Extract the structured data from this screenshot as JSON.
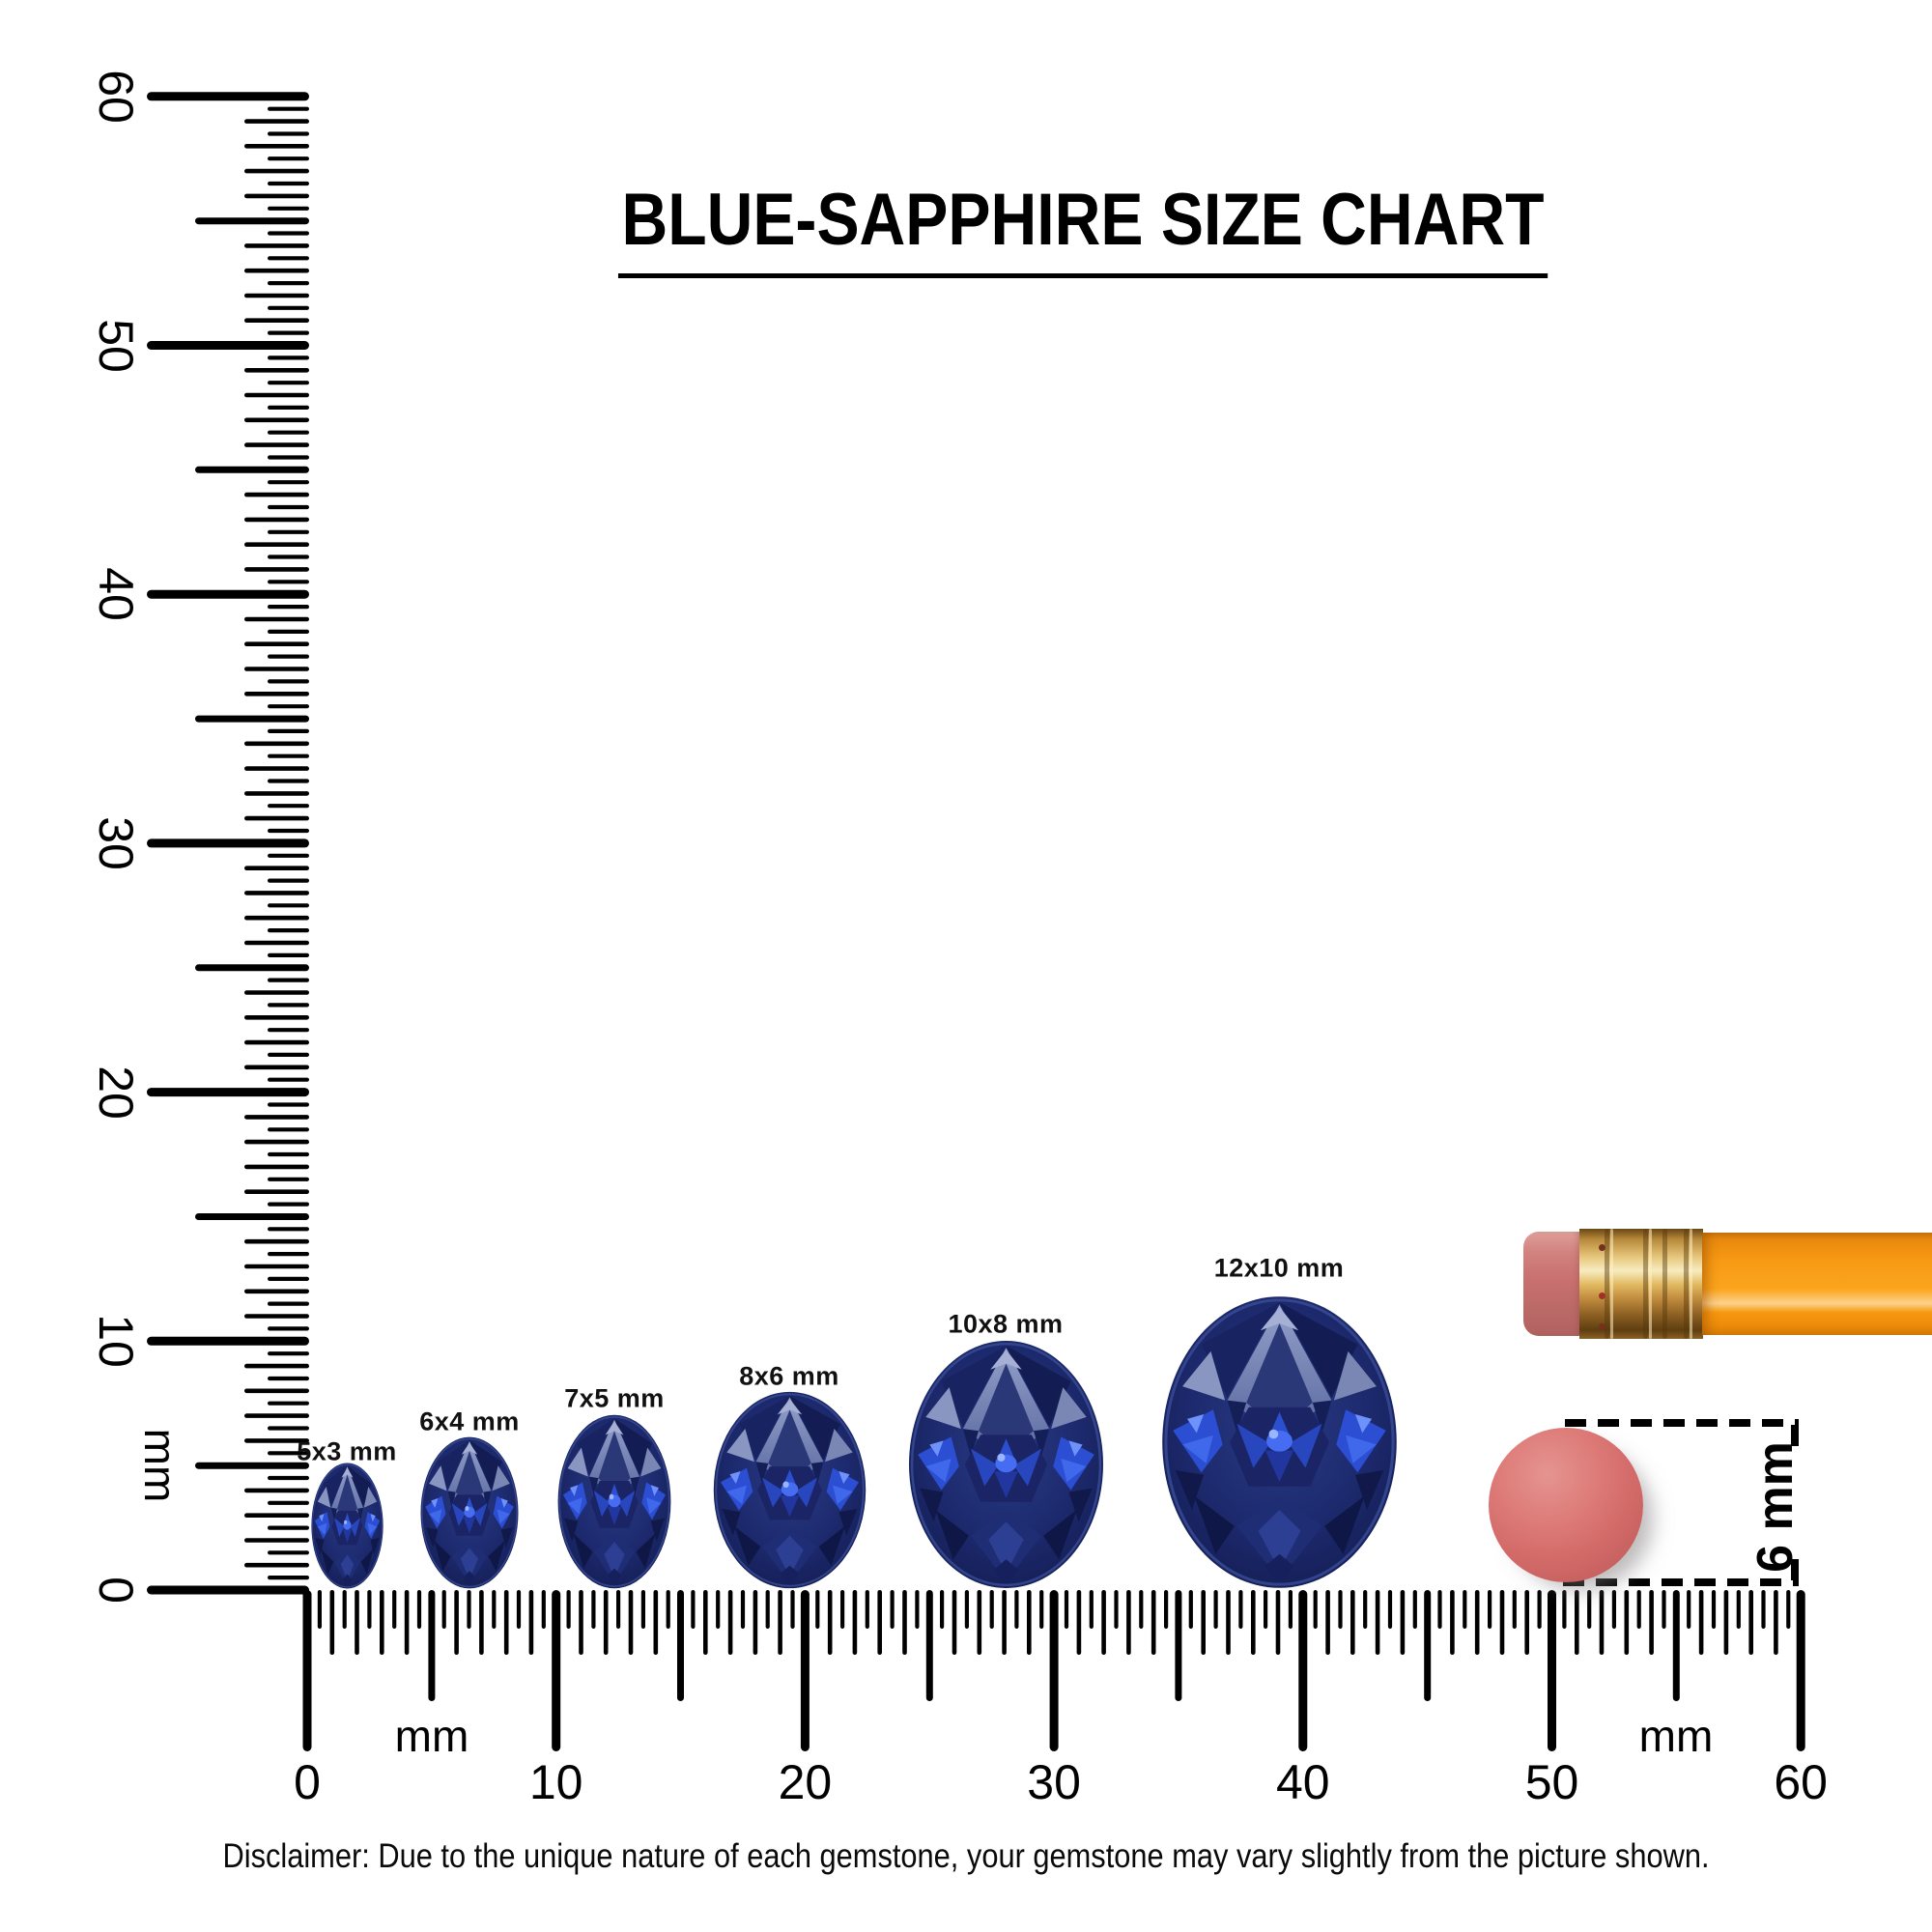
{
  "title": "BLUE-SAPPHIRE SIZE CHART",
  "disclaimer": "Disclaimer: Due to the unique nature of each gemstone, your gemstone may vary slightly from the picture shown.",
  "chart_data": {
    "type": "size-comparison-diagram",
    "subject": "blue sapphire oval gemstones",
    "unit": "mm",
    "sizes_mm": [
      [
        5,
        3
      ],
      [
        6,
        4
      ],
      [
        7,
        5
      ],
      [
        8,
        6
      ],
      [
        10,
        8
      ],
      [
        12,
        10
      ]
    ],
    "size_labels": [
      "5x3 mm",
      "6x4 mm",
      "7x5 mm",
      "8x6 mm",
      "10x8 mm",
      "12x10 mm"
    ],
    "reference_objects": [
      "pencil with eraser",
      "round pencil eraser (6 mm)"
    ],
    "rulers": "vertical 0-60 mm and horizontal 0-60 mm, ticks every 0.5 mm"
  },
  "gems": [
    {
      "label": "5x3 mm",
      "length_mm": 5,
      "width_mm": 3
    },
    {
      "label": "6x4 mm",
      "length_mm": 6,
      "width_mm": 4
    },
    {
      "label": "7x5 mm",
      "length_mm": 7,
      "width_mm": 5
    },
    {
      "label": "8x6 mm",
      "length_mm": 8,
      "width_mm": 6
    },
    {
      "label": "10x8 mm",
      "length_mm": 10,
      "width_mm": 8
    },
    {
      "label": "12x10 mm",
      "length_mm": 12,
      "width_mm": 10
    }
  ],
  "vertical_ruler": {
    "unit": "mm",
    "labels": [
      "0",
      "10",
      "20",
      "30",
      "40",
      "50",
      "60"
    ],
    "min_mm": 0,
    "max_mm": 60,
    "tick_interval_mm": 0.5,
    "labeled_interval_mm": 10
  },
  "horizontal_ruler": {
    "unit_left": "mm",
    "unit_right": "mm",
    "labels": [
      "0",
      "10",
      "20",
      "30",
      "40",
      "50",
      "60"
    ],
    "min_mm": 0,
    "max_mm": 60,
    "tick_interval_mm": 0.5,
    "labeled_interval_mm": 10
  },
  "eraser_measurement": {
    "label": "6 mm",
    "diameter_mm": 6
  },
  "colors": {
    "background": "#ffffff",
    "ink": "#000000",
    "gem_base": "#1d2a6e",
    "gem_dark": "#121c50",
    "gem_light_facet": "#8a96c2",
    "gem_bright_blue": "#2b4ed2",
    "pencil_body_orange": "#f79a14",
    "ferrule_gold": "#e3bc65",
    "eraser_pink": "#c97170",
    "round_eraser_pink": "#d26a68"
  }
}
